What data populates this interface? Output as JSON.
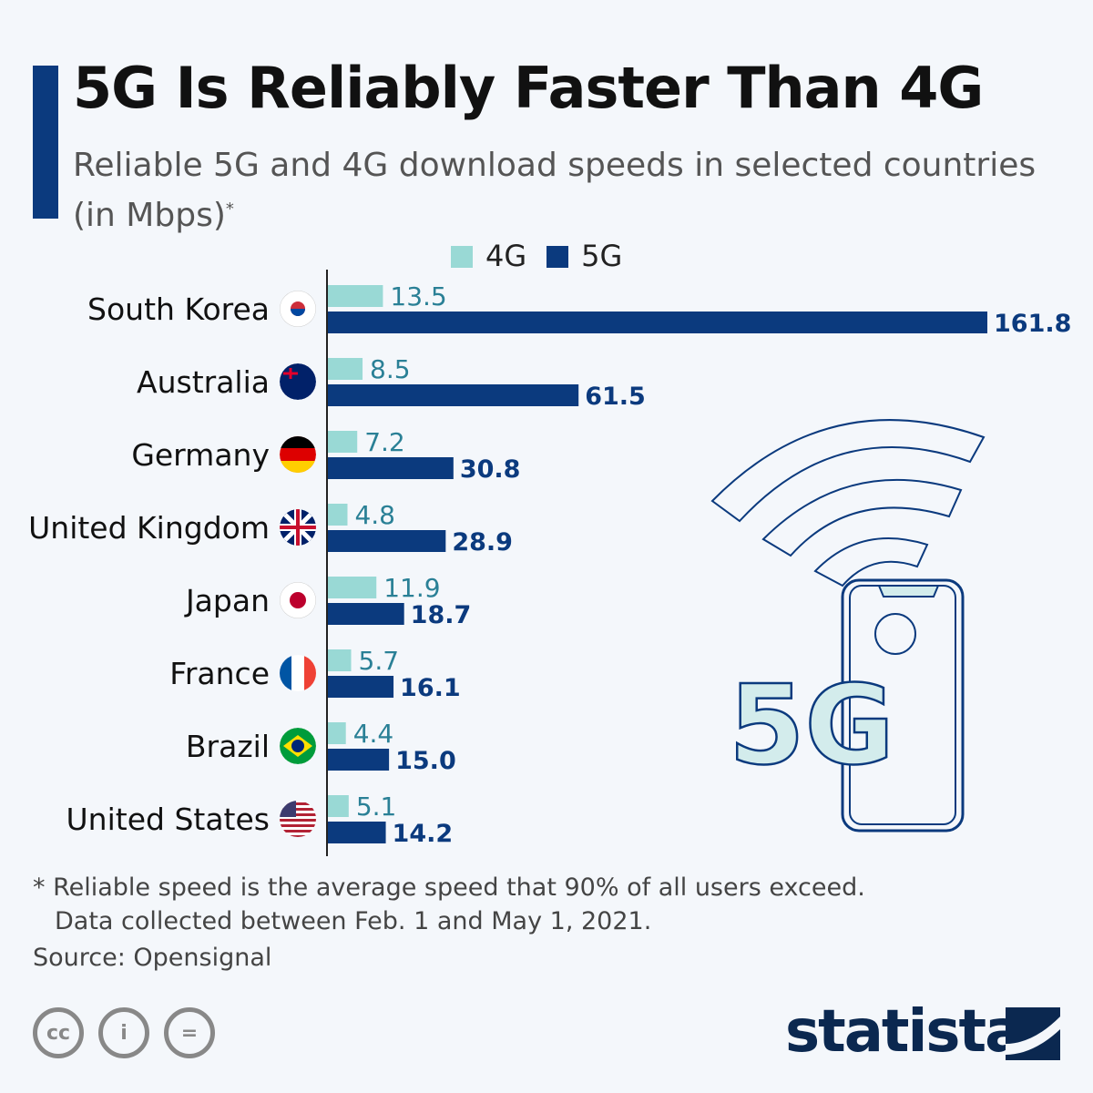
{
  "title": "5G Is Reliably Faster Than 4G",
  "subtitle": "Reliable 5G and 4G download speeds in selected countries (in Mbps)",
  "subtitle_mark": "*",
  "colors": {
    "4G": "#99d9d5",
    "5G": "#0b3a7e",
    "label_4G": "#2a8096",
    "background": "#f4f7fb"
  },
  "chart_data": {
    "type": "bar",
    "orientation": "horizontal",
    "categories": [
      "South Korea",
      "Australia",
      "Germany",
      "United Kingdom",
      "Japan",
      "France",
      "Brazil",
      "United States"
    ],
    "flag_icons": [
      "south-korea-flag-icon",
      "australia-flag-icon",
      "germany-flag-icon",
      "united-kingdom-flag-icon",
      "japan-flag-icon",
      "france-flag-icon",
      "brazil-flag-icon",
      "united-states-flag-icon"
    ],
    "series": [
      {
        "name": "4G",
        "values": [
          13.5,
          8.5,
          7.2,
          4.8,
          11.9,
          5.7,
          4.4,
          5.1
        ],
        "labels": [
          "13.5",
          "8.5",
          "7.2",
          "4.8",
          "11.9",
          "5.7",
          "4.4",
          "5.1"
        ]
      },
      {
        "name": "5G",
        "values": [
          161.8,
          61.5,
          30.8,
          28.9,
          18.7,
          16.1,
          15.0,
          14.2
        ],
        "labels": [
          "161.8",
          "61.5",
          "30.8",
          "28.9",
          "18.7",
          "16.1",
          "15.0",
          "14.2"
        ]
      }
    ],
    "legend": "top",
    "grid": false
  },
  "illustration_text": "5G",
  "footnote": [
    "* Reliable speed is the average speed that 90% of all users exceed.",
    "Data collected between Feb. 1 and May 1, 2021."
  ],
  "source": "Source: Opensignal",
  "license_icons": [
    "cc-icon",
    "attribution-icon",
    "no-derivatives-icon"
  ],
  "license_glyphs": [
    "cc",
    "i",
    "="
  ],
  "brand": "statista"
}
